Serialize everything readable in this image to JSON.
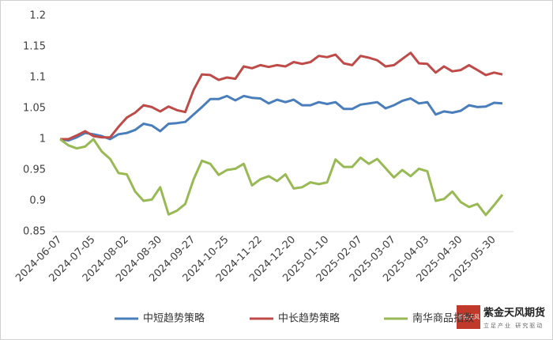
{
  "chart_data": {
    "type": "line",
    "categories": [
      "2024-06-07",
      null,
      null,
      null,
      "2024-07-05",
      null,
      null,
      null,
      "2024-08-02",
      null,
      null,
      null,
      "2024-08-30",
      null,
      null,
      null,
      "2024-09-27",
      null,
      null,
      null,
      "2024-10-25",
      null,
      null,
      null,
      "2024-11-22",
      null,
      null,
      null,
      "2024-12-20",
      null,
      null,
      null,
      "2025-01-10",
      null,
      null,
      null,
      "2025-02-07",
      null,
      null,
      null,
      "2025-03-07",
      null,
      null,
      null,
      "2025-04-03",
      null,
      null,
      null,
      "2025-04-30",
      null,
      null,
      null,
      "2025-05-30",
      null
    ],
    "series": [
      {
        "name": "中短趋势策略",
        "color": "#4a7ebb",
        "values": [
          1,
          0.998,
          1.003,
          1.01,
          1.008,
          1.005,
          1.0,
          1.008,
          1.01,
          1.015,
          1.025,
          1.022,
          1.013,
          1.025,
          1.026,
          1.028,
          1.04,
          1.052,
          1.065,
          1.065,
          1.07,
          1.063,
          1.07,
          1.067,
          1.066,
          1.058,
          1.064,
          1.06,
          1.064,
          1.055,
          1.055,
          1.06,
          1.057,
          1.06,
          1.049,
          1.049,
          1.056,
          1.058,
          1.06,
          1.05,
          1.055,
          1.062,
          1.066,
          1.058,
          1.06,
          1.04,
          1.045,
          1.043,
          1.046,
          1.055,
          1.052,
          1.053,
          1.059,
          1.058
        ]
      },
      {
        "name": "中长趋势策略",
        "color": "#be4b48",
        "values": [
          1,
          1.0,
          1.006,
          1.013,
          1.005,
          1.003,
          1.003,
          1.02,
          1.035,
          1.043,
          1.055,
          1.052,
          1.045,
          1.053,
          1.047,
          1.044,
          1.08,
          1.105,
          1.104,
          1.096,
          1.1,
          1.098,
          1.118,
          1.115,
          1.12,
          1.117,
          1.12,
          1.118,
          1.125,
          1.122,
          1.125,
          1.135,
          1.133,
          1.137,
          1.123,
          1.12,
          1.135,
          1.132,
          1.128,
          1.118,
          1.12,
          1.13,
          1.14,
          1.123,
          1.122,
          1.108,
          1.118,
          1.11,
          1.112,
          1.12,
          1.112,
          1.104,
          1.108,
          1.105
        ]
      },
      {
        "name": "南华商品指数",
        "color": "#98b954",
        "values": [
          1,
          0.99,
          0.985,
          0.988,
          1.0,
          0.98,
          0.968,
          0.945,
          0.943,
          0.915,
          0.9,
          0.902,
          0.922,
          0.878,
          0.884,
          0.895,
          0.935,
          0.965,
          0.96,
          0.942,
          0.95,
          0.952,
          0.96,
          0.925,
          0.935,
          0.94,
          0.932,
          0.943,
          0.92,
          0.922,
          0.93,
          0.927,
          0.93,
          0.967,
          0.955,
          0.955,
          0.97,
          0.96,
          0.968,
          0.953,
          0.938,
          0.95,
          0.94,
          0.952,
          0.948,
          0.9,
          0.903,
          0.915,
          0.898,
          0.89,
          0.895,
          0.877,
          0.893,
          0.91
        ]
      }
    ],
    "ylim": [
      0.85,
      1.2
    ],
    "yticks": [
      0.85,
      0.9,
      0.95,
      1,
      1.05,
      1.1,
      1.15,
      1.2
    ],
    "grid": false,
    "legend": "bottom"
  },
  "brand": {
    "name": "紫金天风期货",
    "slogan": "立足产业 研究驱动",
    "logo": "紫金天风"
  }
}
